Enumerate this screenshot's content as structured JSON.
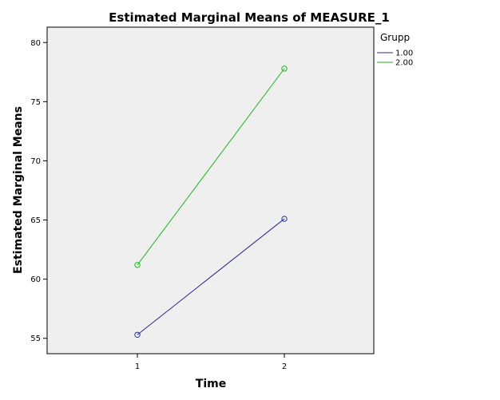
{
  "chart_data": {
    "type": "line",
    "title": "Estimated Marginal Means of MEASURE_1",
    "xlabel": "Time",
    "ylabel": "Estimated Marginal Means",
    "categories": [
      "1",
      "2"
    ],
    "ylim": [
      53.7,
      81.3
    ],
    "yticks": [
      55,
      60,
      65,
      70,
      75,
      80
    ],
    "grid": false,
    "legend_title": "Grupp",
    "legend_position": "top-right",
    "series": [
      {
        "name": "1.00",
        "values": [
          55.3,
          65.1
        ],
        "color": "#2b2b8c"
      },
      {
        "name": "2.00",
        "values": [
          61.2,
          77.8
        ],
        "color": "#22b422"
      }
    ],
    "plot_background": "#efefef"
  }
}
